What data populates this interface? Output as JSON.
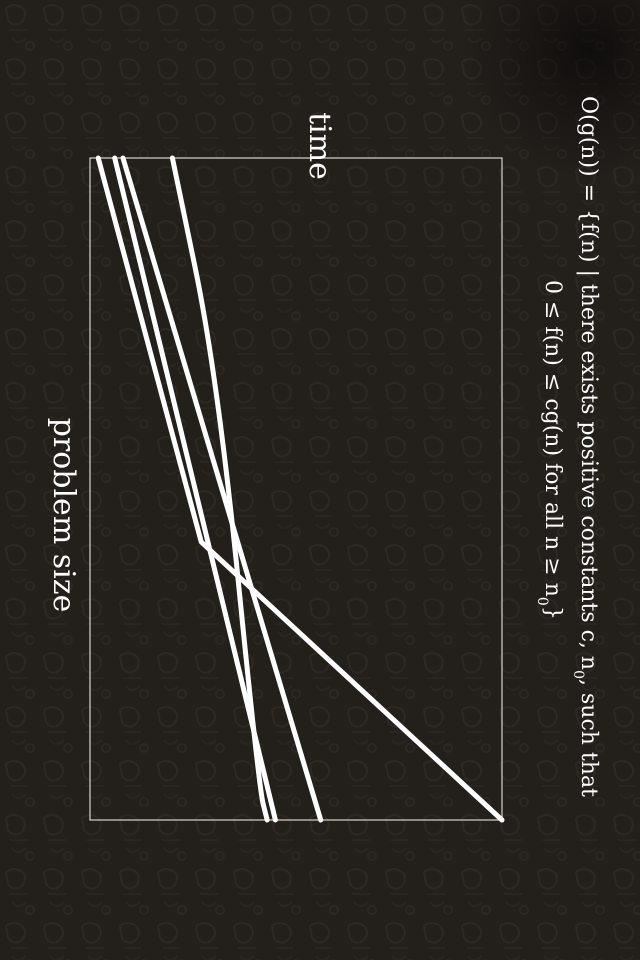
{
  "chart_data": {
    "type": "line",
    "orientation": "rotated-90-clockwise",
    "xlabel": "problem size",
    "ylabel": "time",
    "formula": {
      "line1_parts": [
        "O(g(n)) = {f(n) | there exists positive constants c, n",
        "0",
        ", such that"
      ],
      "line2_parts": [
        "0 ≤ f(n) ≤ cg(n) for all n ≥ n",
        "0",
        "}"
      ]
    },
    "xlim": [
      0,
      1
    ],
    "ylim": [
      0,
      1
    ],
    "grid": false,
    "legend": "none",
    "series": [
      {
        "values": [
          [
            0.0,
            0.98
          ],
          [
            0.58,
            0.73
          ],
          [
            1.0,
            0.0
          ]
        ]
      },
      {
        "values": [
          [
            0.0,
            0.8
          ],
          [
            0.33,
            0.69
          ],
          [
            0.95,
            0.59
          ],
          [
            1.0,
            0.57
          ]
        ]
      },
      {
        "values": [
          [
            0.0,
            0.92
          ],
          [
            1.0,
            0.44
          ]
        ]
      },
      {
        "values": [
          [
            0.0,
            0.94
          ],
          [
            1.0,
            0.55
          ]
        ]
      }
    ],
    "colors": {
      "background": "#231f1b",
      "line": "#ffffff",
      "frame": "#d8d4cc",
      "text": "#ffffff"
    }
  }
}
